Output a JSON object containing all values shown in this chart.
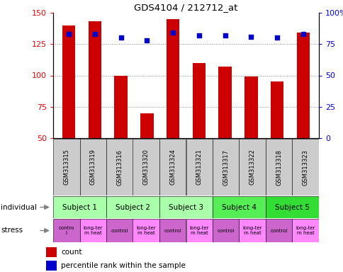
{
  "title": "GDS4104 / 212712_at",
  "samples": [
    "GSM313315",
    "GSM313319",
    "GSM313316",
    "GSM313320",
    "GSM313324",
    "GSM313321",
    "GSM313317",
    "GSM313322",
    "GSM313318",
    "GSM313323"
  ],
  "counts": [
    140,
    143,
    100,
    70,
    145,
    110,
    107,
    99,
    95,
    134
  ],
  "percentile_ranks": [
    83,
    83,
    80,
    78,
    84,
    82,
    82,
    81,
    80,
    83
  ],
  "ylim_left": [
    50,
    150
  ],
  "ylim_right": [
    0,
    100
  ],
  "yticks_left": [
    50,
    75,
    100,
    125,
    150
  ],
  "yticks_right": [
    0,
    25,
    50,
    75,
    100
  ],
  "subjects": [
    {
      "label": "Subject 1",
      "start": 0,
      "end": 2,
      "color": "#aaffaa"
    },
    {
      "label": "Subject 2",
      "start": 2,
      "end": 4,
      "color": "#aaffaa"
    },
    {
      "label": "Subject 3",
      "start": 4,
      "end": 6,
      "color": "#aaffaa"
    },
    {
      "label": "Subject 4",
      "start": 6,
      "end": 8,
      "color": "#55ee55"
    },
    {
      "label": "Subject 5",
      "start": 8,
      "end": 10,
      "color": "#33dd33"
    }
  ],
  "stress_labels": [
    "contro\nl",
    "long-ter\nm heat",
    "control",
    "long-ter\nm heat",
    "control",
    "long-ter\nm heat",
    "control",
    "long-ter\nm heat",
    "control",
    "long-ter\nm heat"
  ],
  "stress_colors_odd": "#cc66cc",
  "stress_colors_even": "#ff88ff",
  "bar_color": "#cc0000",
  "dot_color": "#0000cc",
  "bar_width": 0.5,
  "bg_color": "#ffffff",
  "grid_color": "#888888",
  "sample_area_color": "#cccccc",
  "individual_label": "individual",
  "stress_label": "stress"
}
